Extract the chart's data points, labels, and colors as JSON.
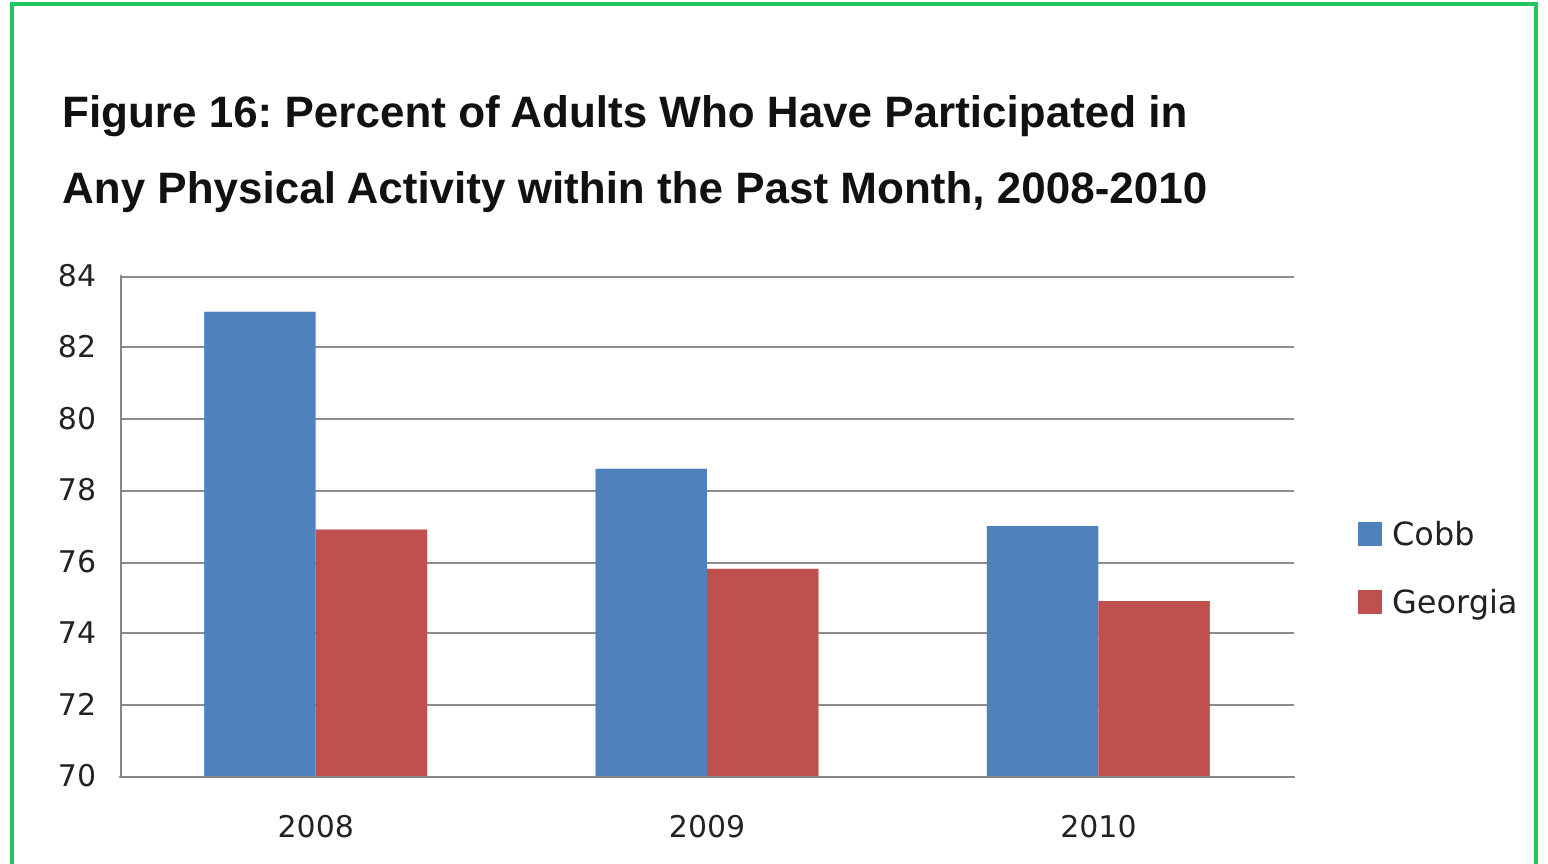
{
  "chart_data": {
    "type": "bar",
    "title": "Figure 16: Percent of Adults Who Have Participated in Any Physical Activity within the Past Month, 2008-2010",
    "categories": [
      "2008",
      "2009",
      "2010"
    ],
    "series": [
      {
        "name": "Cobb",
        "color": "#4f81bd",
        "values": [
          83.0,
          78.6,
          77.0
        ]
      },
      {
        "name": "Georgia",
        "color": "#c0504d",
        "values": [
          76.9,
          75.8,
          74.9
        ]
      }
    ],
    "ylim": [
      70,
      84
    ],
    "yticks": [
      70,
      72,
      74,
      76,
      78,
      80,
      82,
      84
    ],
    "grid": "y",
    "legend": "right"
  }
}
